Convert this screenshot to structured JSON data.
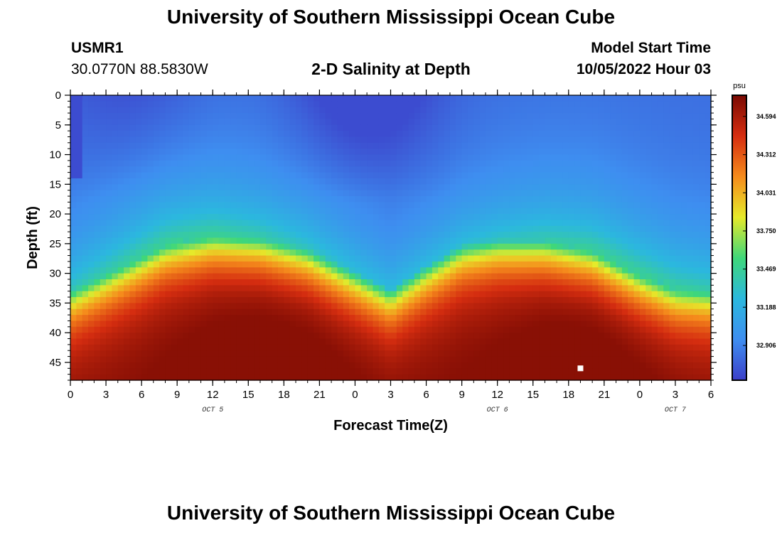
{
  "page": {
    "title": "University of Southern Mississippi Ocean Cube",
    "station_id": "USMR1",
    "station_coords": "30.0770N  88.5830W",
    "subtitle": "2-D Salinity at Depth",
    "start_label": "Model Start Time",
    "start_value": "10/05/2022 Hour 03",
    "footer_title": "University of Southern Mississippi Ocean Cube"
  },
  "chart_data": {
    "type": "heatmap",
    "title": "2-D Salinity at Depth",
    "xlabel": "Forecast Time(Z)",
    "ylabel": "Depth (ft)",
    "x_ticks": [
      {
        "hour_offset": 0,
        "label": "0"
      },
      {
        "hour_offset": 3,
        "label": "3"
      },
      {
        "hour_offset": 6,
        "label": "6"
      },
      {
        "hour_offset": 9,
        "label": "9"
      },
      {
        "hour_offset": 12,
        "label": "12"
      },
      {
        "hour_offset": 15,
        "label": "15"
      },
      {
        "hour_offset": 18,
        "label": "18"
      },
      {
        "hour_offset": 21,
        "label": "21"
      },
      {
        "hour_offset": 24,
        "label": "0"
      },
      {
        "hour_offset": 27,
        "label": "3"
      },
      {
        "hour_offset": 30,
        "label": "6"
      },
      {
        "hour_offset": 33,
        "label": "9"
      },
      {
        "hour_offset": 36,
        "label": "12"
      },
      {
        "hour_offset": 39,
        "label": "15"
      },
      {
        "hour_offset": 42,
        "label": "18"
      },
      {
        "hour_offset": 45,
        "label": "21"
      },
      {
        "hour_offset": 48,
        "label": "0"
      },
      {
        "hour_offset": 51,
        "label": "3"
      },
      {
        "hour_offset": 54,
        "label": "6"
      }
    ],
    "x_range": [
      0,
      54
    ],
    "date_labels": [
      {
        "hour_offset": 12,
        "label": "OCT 5"
      },
      {
        "hour_offset": 36,
        "label": "OCT 6"
      },
      {
        "hour_offset": 51,
        "label": "OCT 7"
      }
    ],
    "y_ticks": [
      0,
      5,
      10,
      15,
      20,
      25,
      30,
      35,
      40,
      45
    ],
    "y_range": [
      0,
      48
    ],
    "y_inverted": true,
    "colorbar": {
      "unit": "psu",
      "range": [
        32.65,
        34.75
      ],
      "ticks": [
        34.594,
        34.312,
        34.031,
        33.75,
        33.469,
        33.188,
        32.906
      ],
      "colors": [
        "#3c3fc9",
        "#3e8ef0",
        "#2bb8de",
        "#3fd77a",
        "#e6ea2a",
        "#f58b1c",
        "#d52d10",
        "#7a0a03"
      ]
    },
    "halocline": [
      {
        "hour_offset": 0,
        "depth_ft": 33
      },
      {
        "hour_offset": 4,
        "depth_ft": 29
      },
      {
        "hour_offset": 8,
        "depth_ft": 25
      },
      {
        "hour_offset": 12,
        "depth_ft": 23.5
      },
      {
        "hour_offset": 16,
        "depth_ft": 24
      },
      {
        "hour_offset": 20,
        "depth_ft": 26
      },
      {
        "hour_offset": 24,
        "depth_ft": 30
      },
      {
        "hour_offset": 27,
        "depth_ft": 33
      },
      {
        "hour_offset": 30,
        "depth_ft": 29
      },
      {
        "hour_offset": 33,
        "depth_ft": 25.5
      },
      {
        "hour_offset": 36,
        "depth_ft": 24.5
      },
      {
        "hour_offset": 40,
        "depth_ft": 24.5
      },
      {
        "hour_offset": 44,
        "depth_ft": 26
      },
      {
        "hour_offset": 48,
        "depth_ft": 30
      },
      {
        "hour_offset": 51,
        "depth_ft": 32.5
      },
      {
        "hour_offset": 54,
        "depth_ft": 33
      }
    ],
    "salinity_range_psu": [
      32.7,
      34.7
    ],
    "marker": {
      "hour_offset": 43,
      "depth_ft": 46,
      "color": "#ffffff"
    }
  }
}
